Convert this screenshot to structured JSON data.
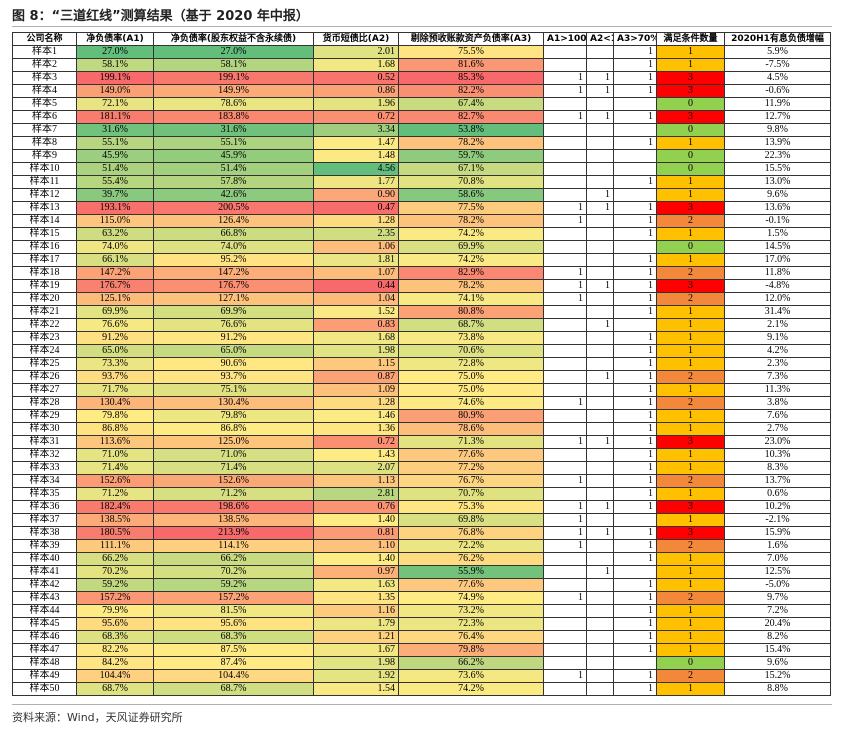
{
  "header": {
    "title": "图 8：“三道红线”测算结果（基于 2020 年中报）"
  },
  "table": {
    "header": [
      "公司名称",
      "净负债率(A1)",
      "净负债率(股东权益不含永续债)",
      "货币短债比(A2)",
      "剔除预收账款资产负债率(A3)",
      "A1>100%",
      "A2<1",
      "A3>70%",
      "满足条件数量",
      "2020H1有息负债增幅"
    ],
    "rows": [
      [
        "样本1",
        "27.0%",
        "27.0%",
        "2.01",
        "75.5%",
        null,
        null,
        "1",
        "1",
        "5.9%"
      ],
      [
        "样本2",
        "58.1%",
        "58.1%",
        "1.68",
        "81.6%",
        null,
        null,
        "1",
        "1",
        "-7.5%"
      ],
      [
        "样本3",
        "199.1%",
        "199.1%",
        "0.52",
        "85.3%",
        "1",
        "1",
        "1",
        "3",
        "4.5%"
      ],
      [
        "样本4",
        "149.0%",
        "149.9%",
        "0.86",
        "82.2%",
        "1",
        "1",
        "1",
        "3",
        "-0.6%"
      ],
      [
        "样本5",
        "72.1%",
        "78.6%",
        "1.96",
        "67.4%",
        null,
        null,
        null,
        "0",
        "11.9%"
      ],
      [
        "样本6",
        "181.1%",
        "183.8%",
        "0.72",
        "82.7%",
        "1",
        "1",
        "1",
        "3",
        "12.7%"
      ],
      [
        "样本7",
        "31.6%",
        "31.6%",
        "3.34",
        "53.8%",
        null,
        null,
        null,
        "0",
        "9.8%"
      ],
      [
        "样本8",
        "55.1%",
        "55.1%",
        "1.47",
        "78.2%",
        null,
        null,
        "1",
        "1",
        "13.9%"
      ],
      [
        "样本9",
        "45.9%",
        "45.9%",
        "1.48",
        "59.7%",
        null,
        null,
        null,
        "0",
        "22.3%"
      ],
      [
        "样本10",
        "51.4%",
        "51.4%",
        "4.56",
        "67.1%",
        null,
        null,
        null,
        "0",
        "15.5%"
      ],
      [
        "样本11",
        "55.4%",
        "57.8%",
        "1.77",
        "70.8%",
        null,
        null,
        "1",
        "1",
        "13.0%"
      ],
      [
        "样本12",
        "39.7%",
        "42.6%",
        "0.90",
        "58.6%",
        null,
        "1",
        null,
        "1",
        "9.6%"
      ],
      [
        "样本13",
        "193.1%",
        "200.5%",
        "0.47",
        "77.5%",
        "1",
        "1",
        "1",
        "3",
        "13.6%"
      ],
      [
        "样本14",
        "115.0%",
        "126.4%",
        "1.28",
        "78.2%",
        "1",
        null,
        "1",
        "2",
        "-0.1%"
      ],
      [
        "样本15",
        "63.2%",
        "66.8%",
        "2.35",
        "74.2%",
        null,
        null,
        "1",
        "1",
        "1.5%"
      ],
      [
        "样本16",
        "74.0%",
        "74.0%",
        "1.06",
        "69.9%",
        null,
        null,
        null,
        "0",
        "14.5%"
      ],
      [
        "样本17",
        "66.1%",
        "95.2%",
        "1.81",
        "74.2%",
        null,
        null,
        "1",
        "1",
        "17.0%"
      ],
      [
        "样本18",
        "147.2%",
        "147.2%",
        "1.07",
        "82.9%",
        "1",
        null,
        "1",
        "2",
        "11.8%"
      ],
      [
        "样本19",
        "176.7%",
        "176.7%",
        "0.44",
        "78.2%",
        "1",
        "1",
        "1",
        "3",
        "-4.8%"
      ],
      [
        "样本20",
        "125.1%",
        "127.1%",
        "1.04",
        "74.1%",
        "1",
        null,
        "1",
        "2",
        "12.0%"
      ],
      [
        "样本21",
        "69.9%",
        "69.9%",
        "1.52",
        "80.8%",
        null,
        null,
        "1",
        "1",
        "31.4%"
      ],
      [
        "样本22",
        "76.6%",
        "76.6%",
        "0.83",
        "68.7%",
        null,
        "1",
        null,
        "1",
        "2.1%"
      ],
      [
        "样本23",
        "91.2%",
        "91.2%",
        "1.68",
        "73.8%",
        null,
        null,
        "1",
        "1",
        "9.1%"
      ],
      [
        "样本24",
        "65.0%",
        "65.0%",
        "1.98",
        "70.6%",
        null,
        null,
        "1",
        "1",
        "4.2%"
      ],
      [
        "样本25",
        "73.3%",
        "90.6%",
        "1.15",
        "72.8%",
        null,
        null,
        "1",
        "1",
        "2.3%"
      ],
      [
        "样本26",
        "93.7%",
        "93.7%",
        "0.87",
        "75.0%",
        null,
        "1",
        "1",
        "2",
        "7.3%"
      ],
      [
        "样本27",
        "71.7%",
        "75.1%",
        "1.09",
        "75.0%",
        null,
        null,
        "1",
        "1",
        "11.3%"
      ],
      [
        "样本28",
        "130.4%",
        "130.4%",
        "1.28",
        "74.6%",
        "1",
        null,
        "1",
        "2",
        "3.8%"
      ],
      [
        "样本29",
        "79.8%",
        "79.8%",
        "1.46",
        "80.9%",
        null,
        null,
        "1",
        "1",
        "7.6%"
      ],
      [
        "样本30",
        "86.8%",
        "86.8%",
        "1.36",
        "78.6%",
        null,
        null,
        "1",
        "1",
        "2.7%"
      ],
      [
        "样本31",
        "113.6%",
        "125.0%",
        "0.72",
        "71.3%",
        "1",
        "1",
        "1",
        "3",
        "23.0%"
      ],
      [
        "样本32",
        "71.0%",
        "71.0%",
        "1.43",
        "77.6%",
        null,
        null,
        "1",
        "1",
        "10.3%"
      ],
      [
        "样本33",
        "71.4%",
        "71.4%",
        "2.07",
        "77.2%",
        null,
        null,
        "1",
        "1",
        "8.3%"
      ],
      [
        "样本34",
        "152.6%",
        "152.6%",
        "1.13",
        "76.7%",
        "1",
        null,
        "1",
        "2",
        "13.7%"
      ],
      [
        "样本35",
        "71.2%",
        "71.2%",
        "2.81",
        "70.7%",
        null,
        null,
        "1",
        "1",
        "0.6%"
      ],
      [
        "样本36",
        "182.4%",
        "198.6%",
        "0.76",
        "75.3%",
        "1",
        "1",
        "1",
        "3",
        "10.2%"
      ],
      [
        "样本37",
        "138.5%",
        "138.5%",
        "1.40",
        "69.8%",
        "1",
        null,
        null,
        "1",
        "-2.1%"
      ],
      [
        "样本38",
        "180.5%",
        "213.9%",
        "0.81",
        "76.8%",
        "1",
        "1",
        "1",
        "3",
        "15.9%"
      ],
      [
        "样本39",
        "111.1%",
        "114.1%",
        "1.10",
        "72.2%",
        "1",
        null,
        "1",
        "2",
        "1.6%"
      ],
      [
        "样本40",
        "66.2%",
        "66.2%",
        "1.40",
        "76.2%",
        null,
        null,
        "1",
        "1",
        "7.0%"
      ],
      [
        "样本41",
        "70.2%",
        "70.2%",
        "0.97",
        "55.9%",
        null,
        "1",
        null,
        "1",
        "12.5%"
      ],
      [
        "样本42",
        "59.2%",
        "59.2%",
        "1.63",
        "77.6%",
        null,
        null,
        "1",
        "1",
        "-5.0%"
      ],
      [
        "样本43",
        "157.2%",
        "157.2%",
        "1.35",
        "74.9%",
        "1",
        null,
        "1",
        "2",
        "9.7%"
      ],
      [
        "样本44",
        "79.9%",
        "81.5%",
        "1.16",
        "73.2%",
        null,
        null,
        "1",
        "1",
        "7.2%"
      ],
      [
        "样本45",
        "95.6%",
        "95.6%",
        "1.79",
        "72.3%",
        null,
        null,
        "1",
        "1",
        "20.4%"
      ],
      [
        "样本46",
        "68.3%",
        "68.3%",
        "1.21",
        "76.4%",
        null,
        null,
        "1",
        "1",
        "8.2%"
      ],
      [
        "样本47",
        "82.2%",
        "87.5%",
        "1.67",
        "79.8%",
        null,
        null,
        "1",
        "1",
        "15.4%"
      ],
      [
        "样本48",
        "84.2%",
        "87.4%",
        "1.98",
        "66.2%",
        null,
        null,
        null,
        "0",
        "9.6%"
      ],
      [
        "样本49",
        "104.4%",
        "104.4%",
        "1.92",
        "73.6%",
        "1",
        null,
        "1",
        "2",
        "15.2%"
      ],
      [
        "样本50",
        "68.7%",
        "68.7%",
        "1.54",
        "74.2%",
        null,
        null,
        "1",
        "1",
        "8.8%"
      ]
    ]
  },
  "footer": {
    "source": "资料来源：Wind，天风证券研究所"
  }
}
